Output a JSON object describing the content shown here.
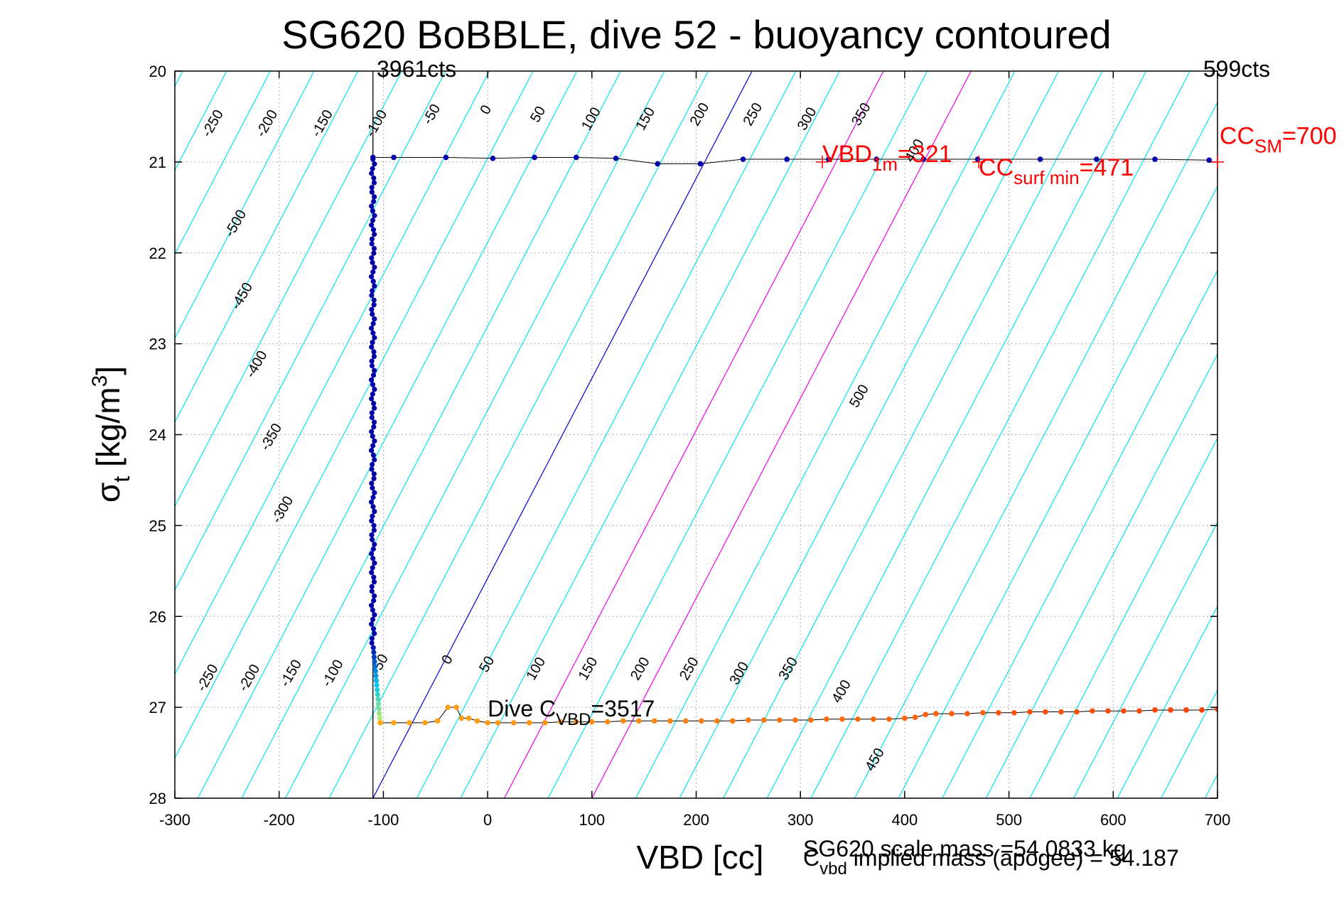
{
  "chart_data": {
    "type": "scatter",
    "title": "SG620 BoBBLE, dive 52 - buoyancy contoured",
    "xlabel": "VBD [cc]",
    "ylabel": {
      "base": "σ",
      "sub": "t",
      "main": " [kg/m",
      "sup": "3",
      "end": "]"
    },
    "xlim": [
      -300,
      700
    ],
    "ylim": [
      20,
      28
    ],
    "y_reversed": true,
    "grid": true,
    "x_ticks": [
      -300,
      -200,
      -100,
      0,
      100,
      200,
      300,
      400,
      500,
      600,
      700
    ],
    "y_ticks": [
      20,
      21,
      22,
      23,
      24,
      25,
      26,
      27,
      28
    ],
    "colors": {
      "contour": "#00e5ee",
      "neutral": "#0000cc",
      "magenta": "#ee00ee",
      "red": "#ff0000",
      "line": "#000000"
    },
    "counts_left": "3961cts",
    "counts_right": "599cts",
    "vertical_line_x": -110,
    "top_contour_labels": [
      {
        "v": -250,
        "x": -260,
        "y": 20.6
      },
      {
        "v": -200,
        "x": -208,
        "y": 20.6
      },
      {
        "v": -150,
        "x": -155,
        "y": 20.6
      },
      {
        "v": -100,
        "x": -103,
        "y": 20.6
      },
      {
        "v": -50,
        "x": -50,
        "y": 20.5
      },
      {
        "v": 0,
        "x": 2,
        "y": 20.45
      },
      {
        "v": 50,
        "x": 52,
        "y": 20.5
      },
      {
        "v": 100,
        "x": 103,
        "y": 20.55
      },
      {
        "v": 150,
        "x": 155,
        "y": 20.55
      },
      {
        "v": 200,
        "x": 207,
        "y": 20.5
      },
      {
        "v": 250,
        "x": 258,
        "y": 20.5
      },
      {
        "v": 300,
        "x": 310,
        "y": 20.55
      },
      {
        "v": 350,
        "x": 362,
        "y": 20.5
      },
      {
        "v": 400,
        "x": 413,
        "y": 20.9
      }
    ],
    "left_contour_labels": [
      {
        "v": -500,
        "x": -238,
        "y": 21.7
      },
      {
        "v": -450,
        "x": -232,
        "y": 22.5
      },
      {
        "v": -400,
        "x": -218,
        "y": 23.25
      },
      {
        "v": -350,
        "x": -204,
        "y": 24.05
      },
      {
        "v": -300,
        "x": -193,
        "y": 24.85
      },
      {
        "v": 500,
        "x": 360,
        "y": 23.6
      }
    ],
    "bottom_contour_labels": [
      {
        "v": -250,
        "x": -265,
        "y": 26.7
      },
      {
        "v": -200,
        "x": -225,
        "y": 26.7
      },
      {
        "v": -150,
        "x": -185,
        "y": 26.65
      },
      {
        "v": -100,
        "x": -145,
        "y": 26.65
      },
      {
        "v": -50,
        "x": -100,
        "y": 26.55
      },
      {
        "v": 0,
        "x": -35,
        "y": 26.5
      },
      {
        "v": 50,
        "x": 3,
        "y": 26.55
      },
      {
        "v": 100,
        "x": 50,
        "y": 26.6
      },
      {
        "v": 150,
        "x": 100,
        "y": 26.6
      },
      {
        "v": 200,
        "x": 150,
        "y": 26.6
      },
      {
        "v": 250,
        "x": 197,
        "y": 26.6
      },
      {
        "v": 300,
        "x": 245,
        "y": 26.65
      },
      {
        "v": 350,
        "x": 292,
        "y": 26.6
      },
      {
        "v": 400,
        "x": 343,
        "y": 26.85
      },
      {
        "v": 450,
        "x": 375,
        "y": 27.6
      }
    ],
    "annotations": [
      {
        "parts": [
          {
            "t": "VBD",
            "s": "n"
          },
          {
            "t": "1m",
            "s": "sub"
          },
          {
            "t": "=321",
            "s": "n"
          }
        ],
        "x": 321,
        "y": 21.0,
        "color": "#ff0000",
        "size": 34
      },
      {
        "parts": [
          {
            "t": "CC",
            "s": "n"
          },
          {
            "t": "surf min",
            "s": "sub"
          },
          {
            "t": "=471",
            "s": "n"
          }
        ],
        "x": 471,
        "y": 21.15,
        "color": "#ff0000",
        "size": 34
      },
      {
        "parts": [
          {
            "t": "CC",
            "s": "n"
          },
          {
            "t": "SM",
            "s": "sub"
          },
          {
            "t": "=700",
            "s": "n"
          }
        ],
        "x": 702,
        "y": 20.8,
        "color": "#ff0000",
        "size": 34
      },
      {
        "parts": [
          {
            "t": "Dive C",
            "s": "n"
          },
          {
            "t": "VBD",
            "s": "sub"
          },
          {
            "t": "=3517",
            "s": "n"
          }
        ],
        "x": 0,
        "y": 27.1,
        "color": "#000000",
        "size": 32
      }
    ],
    "reference_markers": [
      {
        "x": 321,
        "y": 21.0
      },
      {
        "x": 471,
        "y": 21.0
      },
      {
        "x": 700,
        "y": 21.0
      }
    ],
    "footer_mass": "SG620 scale mass =54.0833 kg",
    "footer_implied": {
      "base": "C",
      "sub": "vbd",
      "rest": " implied mass (apogee) = 54.187"
    },
    "series": [
      {
        "color": "#0000aa",
        "points": [
          [
            -110,
            20.95
          ],
          [
            -90,
            20.95
          ],
          [
            -40,
            20.95
          ],
          [
            5,
            20.96
          ],
          [
            45,
            20.95
          ],
          [
            85,
            20.95
          ],
          [
            123,
            20.96
          ],
          [
            163,
            21.02
          ],
          [
            204,
            21.02
          ],
          [
            245,
            20.97
          ],
          [
            287,
            20.97
          ],
          [
            327,
            20.97
          ],
          [
            373,
            20.97
          ],
          [
            418,
            20.97
          ],
          [
            470,
            20.97
          ],
          [
            530,
            20.97
          ],
          [
            584,
            20.97
          ],
          [
            640,
            20.97
          ],
          [
            692,
            20.98
          ]
        ]
      },
      {
        "color": "orange",
        "points": [
          [
            -103,
            27.17
          ],
          [
            -90,
            27.17
          ],
          [
            -75,
            27.17
          ],
          [
            -60,
            27.17
          ],
          [
            -48,
            27.15
          ],
          [
            -38,
            27.0
          ],
          [
            -30,
            27.0
          ],
          [
            -25,
            27.12
          ],
          [
            -18,
            27.12
          ],
          [
            -10,
            27.15
          ],
          [
            0,
            27.17
          ],
          [
            10,
            27.17
          ],
          [
            25,
            27.17
          ],
          [
            40,
            27.17
          ],
          [
            55,
            27.17
          ],
          [
            70,
            27.16
          ],
          [
            85,
            27.16
          ],
          [
            100,
            27.16
          ],
          [
            115,
            27.16
          ],
          [
            130,
            27.15
          ],
          [
            145,
            27.15
          ],
          [
            160,
            27.15
          ],
          [
            175,
            27.15
          ],
          [
            190,
            27.15
          ],
          [
            205,
            27.15
          ],
          [
            220,
            27.15
          ],
          [
            235,
            27.15
          ],
          [
            250,
            27.14
          ],
          [
            265,
            27.14
          ],
          [
            280,
            27.14
          ],
          [
            295,
            27.14
          ],
          [
            310,
            27.14
          ],
          [
            325,
            27.13
          ],
          [
            340,
            27.13
          ],
          [
            355,
            27.13
          ],
          [
            370,
            27.13
          ],
          [
            385,
            27.13
          ],
          [
            400,
            27.12
          ],
          [
            410,
            27.11
          ],
          [
            420,
            27.08
          ],
          [
            430,
            27.07
          ],
          [
            445,
            27.07
          ],
          [
            460,
            27.07
          ],
          [
            475,
            27.06
          ],
          [
            490,
            27.06
          ],
          [
            505,
            27.06
          ],
          [
            520,
            27.05
          ],
          [
            535,
            27.05
          ],
          [
            550,
            27.05
          ],
          [
            565,
            27.05
          ],
          [
            580,
            27.04
          ],
          [
            595,
            27.04
          ],
          [
            610,
            27.04
          ],
          [
            625,
            27.04
          ],
          [
            640,
            27.03
          ],
          [
            655,
            27.03
          ],
          [
            670,
            27.03
          ],
          [
            685,
            27.03
          ],
          [
            700,
            27.02
          ]
        ]
      }
    ]
  }
}
